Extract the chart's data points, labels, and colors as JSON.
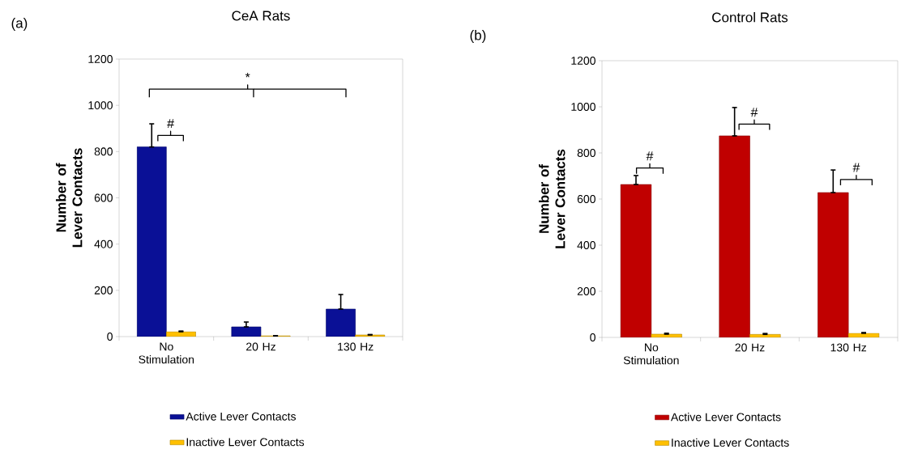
{
  "chart_data": [
    {
      "type": "bar",
      "title": "CeA Rats",
      "ylabel": "Number of Lever Contacts",
      "categories": [
        "No Stimulation",
        "20 Hz",
        "130 Hz"
      ],
      "series": [
        {
          "name": "Active Lever Contacts",
          "color": "#0a1096",
          "values": [
            820,
            42,
            119
          ],
          "errors": [
            [
              820,
              920
            ],
            [
              42,
              63
            ],
            [
              119,
              182
            ]
          ]
        },
        {
          "name": "Inactive Lever Contacts",
          "color": "#ffc000",
          "values": [
            21,
            3,
            7
          ],
          "errors": [
            [
              21,
              24
            ],
            [
              3,
              4
            ],
            [
              7,
              9
            ]
          ]
        }
      ],
      "ylim": [
        0,
        1200
      ],
      "yticks": [
        0,
        200,
        400,
        600,
        800,
        1000,
        1200
      ],
      "legend": "bottom",
      "annotations": [
        "(a)",
        "#",
        "*"
      ]
    },
    {
      "type": "bar",
      "title": "Control Rats",
      "ylabel": "Number of Lever Contacts",
      "categories": [
        "No Stimulation",
        "20 Hz",
        "130 Hz"
      ],
      "series": [
        {
          "name": "Active Lever Contacts",
          "color": "#c00000",
          "values": [
            663,
            874,
            628
          ],
          "errors": [
            [
              663,
              702
            ],
            [
              874,
              997
            ],
            [
              628,
              726
            ]
          ]
        },
        {
          "name": "Inactive Lever Contacts",
          "color": "#ffc000",
          "values": [
            14,
            13,
            18
          ],
          "errors": [
            [
              14,
              18
            ],
            [
              13,
              17
            ],
            [
              18,
              21
            ]
          ]
        }
      ],
      "ylim": [
        0,
        1200
      ],
      "yticks": [
        0,
        200,
        400,
        600,
        800,
        1000,
        1200
      ],
      "legend": "bottom",
      "annotations": [
        "(b)",
        "#",
        "#",
        "#"
      ]
    }
  ]
}
